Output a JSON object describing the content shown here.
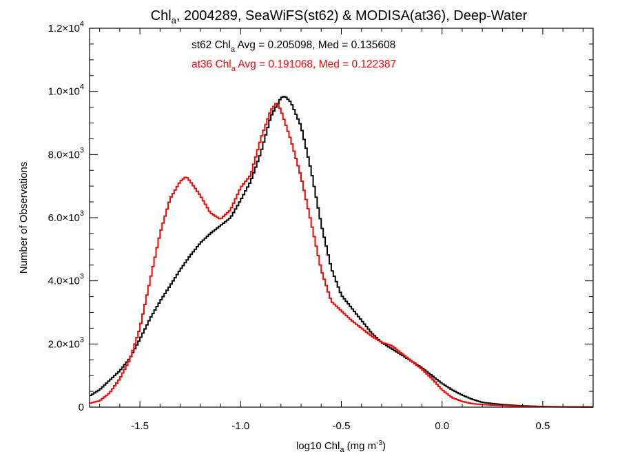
{
  "chart_data": {
    "type": "line",
    "title": {
      "main": "Chl",
      "sub": "a",
      "rest": ", 2004289, SeaWiFS(st62) & MODISA(at36), Deep-Water"
    },
    "xlabel": {
      "main": "log10 Chl",
      "sub": "a",
      "rest": " (mg m",
      "sup": "-3",
      "close": ")"
    },
    "ylabel": "Number of Observations",
    "xlim": [
      -1.75,
      0.75
    ],
    "ylim": [
      0,
      12000
    ],
    "x_ticks": [
      {
        "value": -1.5,
        "label": "-1.5"
      },
      {
        "value": -1.0,
        "label": "-1.0"
      },
      {
        "value": -0.5,
        "label": "-0.5"
      },
      {
        "value": 0.0,
        "label": "0.0"
      },
      {
        "value": 0.5,
        "label": "0.5"
      }
    ],
    "y_ticks": [
      {
        "value": 0,
        "label": "0",
        "exp": ""
      },
      {
        "value": 2000,
        "label": "2.0×10",
        "exp": "3"
      },
      {
        "value": 4000,
        "label": "4.0×10",
        "exp": "3"
      },
      {
        "value": 6000,
        "label": "6.0×10",
        "exp": "3"
      },
      {
        "value": 8000,
        "label": "8.0×10",
        "exp": "3"
      },
      {
        "value": 10000,
        "label": "1.0×10",
        "exp": "4"
      },
      {
        "value": 12000,
        "label": "1.2×10",
        "exp": "4"
      }
    ],
    "grid": false,
    "step": true,
    "annotations": [
      {
        "series": "st62",
        "prefix": "st62 Chl",
        "sub": "a",
        "suffix": " Avg = 0.205098, Med = 0.135608",
        "color": "#000000"
      },
      {
        "series": "at36",
        "prefix": "at36 Chl",
        "sub": "a",
        "suffix": " Avg = 0.191068, Med = 0.122387",
        "color": "#ff0000"
      }
    ],
    "series": [
      {
        "name": "st62",
        "color": "#000000",
        "points": [
          [
            -1.75,
            350
          ],
          [
            -1.7,
            550
          ],
          [
            -1.65,
            850
          ],
          [
            -1.6,
            1150
          ],
          [
            -1.55,
            1550
          ],
          [
            -1.5,
            2150
          ],
          [
            -1.45,
            2800
          ],
          [
            -1.4,
            3350
          ],
          [
            -1.35,
            3850
          ],
          [
            -1.3,
            4350
          ],
          [
            -1.25,
            4800
          ],
          [
            -1.2,
            5200
          ],
          [
            -1.15,
            5500
          ],
          [
            -1.1,
            5750
          ],
          [
            -1.05,
            6000
          ],
          [
            -1.0,
            6550
          ],
          [
            -0.95,
            7150
          ],
          [
            -0.9,
            8050
          ],
          [
            -0.85,
            9200
          ],
          [
            -0.8,
            9800
          ],
          [
            -0.78,
            9850
          ],
          [
            -0.75,
            9650
          ],
          [
            -0.7,
            8900
          ],
          [
            -0.65,
            7500
          ],
          [
            -0.6,
            5800
          ],
          [
            -0.55,
            4400
          ],
          [
            -0.5,
            3550
          ],
          [
            -0.45,
            3150
          ],
          [
            -0.4,
            2750
          ],
          [
            -0.35,
            2350
          ],
          [
            -0.3,
            2050
          ],
          [
            -0.25,
            1850
          ],
          [
            -0.2,
            1650
          ],
          [
            -0.15,
            1450
          ],
          [
            -0.1,
            1250
          ],
          [
            -0.05,
            1000
          ],
          [
            0.0,
            750
          ],
          [
            0.05,
            550
          ],
          [
            0.1,
            380
          ],
          [
            0.15,
            250
          ],
          [
            0.2,
            150
          ],
          [
            0.3,
            80
          ],
          [
            0.4,
            40
          ],
          [
            0.5,
            20
          ],
          [
            0.6,
            10
          ],
          [
            0.75,
            5
          ]
        ]
      },
      {
        "name": "at36",
        "color": "#ff0000",
        "points": [
          [
            -1.75,
            120
          ],
          [
            -1.7,
            200
          ],
          [
            -1.65,
            450
          ],
          [
            -1.6,
            900
          ],
          [
            -1.55,
            1500
          ],
          [
            -1.5,
            2500
          ],
          [
            -1.45,
            4000
          ],
          [
            -1.4,
            5500
          ],
          [
            -1.35,
            6600
          ],
          [
            -1.3,
            7150
          ],
          [
            -1.27,
            7300
          ],
          [
            -1.25,
            7150
          ],
          [
            -1.2,
            6700
          ],
          [
            -1.15,
            6150
          ],
          [
            -1.1,
            5950
          ],
          [
            -1.05,
            6250
          ],
          [
            -1.0,
            6950
          ],
          [
            -0.95,
            7350
          ],
          [
            -0.9,
            8500
          ],
          [
            -0.85,
            9400
          ],
          [
            -0.82,
            9650
          ],
          [
            -0.8,
            9400
          ],
          [
            -0.75,
            8450
          ],
          [
            -0.7,
            7300
          ],
          [
            -0.65,
            5850
          ],
          [
            -0.6,
            4350
          ],
          [
            -0.55,
            3350
          ],
          [
            -0.5,
            3050
          ],
          [
            -0.45,
            2750
          ],
          [
            -0.4,
            2500
          ],
          [
            -0.35,
            2250
          ],
          [
            -0.3,
            2050
          ],
          [
            -0.25,
            1950
          ],
          [
            -0.2,
            1700
          ],
          [
            -0.15,
            1450
          ],
          [
            -0.1,
            1200
          ],
          [
            -0.05,
            900
          ],
          [
            0.0,
            550
          ],
          [
            0.05,
            300
          ],
          [
            0.1,
            180
          ],
          [
            0.15,
            110
          ],
          [
            0.2,
            80
          ],
          [
            0.3,
            50
          ],
          [
            0.4,
            25
          ],
          [
            0.5,
            12
          ],
          [
            0.6,
            8
          ],
          [
            0.75,
            5
          ]
        ]
      }
    ]
  }
}
